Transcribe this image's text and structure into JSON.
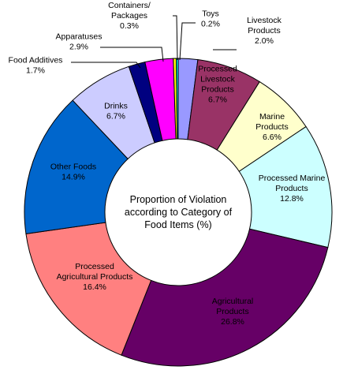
{
  "chart_data": {
    "type": "pie",
    "variant": "donut",
    "center_label": [
      "Proportion of Violation",
      "according to Category of",
      "Food Items (%)"
    ],
    "legend": "none",
    "slices": [
      {
        "name": "Livestock Products",
        "label": [
          "Livestock",
          "Products"
        ],
        "value_text": "2.0%",
        "value": 2.0,
        "color": "#9999FF"
      },
      {
        "name": "Processed Livestock Products",
        "label": [
          "Processed",
          "Livestock",
          "Products"
        ],
        "value_text": "6.7%",
        "value": 6.7,
        "color": "#993366"
      },
      {
        "name": "Marine Products",
        "label": [
          "Marine",
          "Products"
        ],
        "value_text": "6.6%",
        "value": 6.6,
        "color": "#FFFFCC"
      },
      {
        "name": "Processed Marine Products",
        "label": [
          "Processed Marine",
          "Products"
        ],
        "value_text": "12.8%",
        "value": 12.8,
        "color": "#CCFFFF"
      },
      {
        "name": "Agricultural Products",
        "label": [
          "Agricultural",
          "Products"
        ],
        "value_text": "26.8%",
        "value": 26.8,
        "color": "#660066"
      },
      {
        "name": "Processed Agricultural Products",
        "label": [
          "Processed",
          "Agricultural Products"
        ],
        "value_text": "16.4%",
        "value": 16.4,
        "color": "#FF8080"
      },
      {
        "name": "Other Foods",
        "label": [
          "Other Foods"
        ],
        "value_text": "14.9%",
        "value": 14.9,
        "color": "#0066CC"
      },
      {
        "name": "Drinks",
        "label": [
          "Drinks"
        ],
        "value_text": "6.7%",
        "value": 6.7,
        "color": "#CCCCFF"
      },
      {
        "name": "Food Additives",
        "label": [
          "Food Additives"
        ],
        "value_text": "1.7%",
        "value": 1.7,
        "color": "#000080"
      },
      {
        "name": "Apparatuses",
        "label": [
          "Apparatuses"
        ],
        "value_text": "2.9%",
        "value": 2.9,
        "color": "#FF00FF"
      },
      {
        "name": "Containers/Packages",
        "label": [
          "Containers/",
          "Packages"
        ],
        "value_text": "0.3%",
        "value": 0.3,
        "color": "#FFFF00"
      },
      {
        "name": "Toys",
        "label": [
          "Toys"
        ],
        "value_text": "0.2%",
        "value": 0.2,
        "color": "#00FFFF"
      }
    ]
  }
}
